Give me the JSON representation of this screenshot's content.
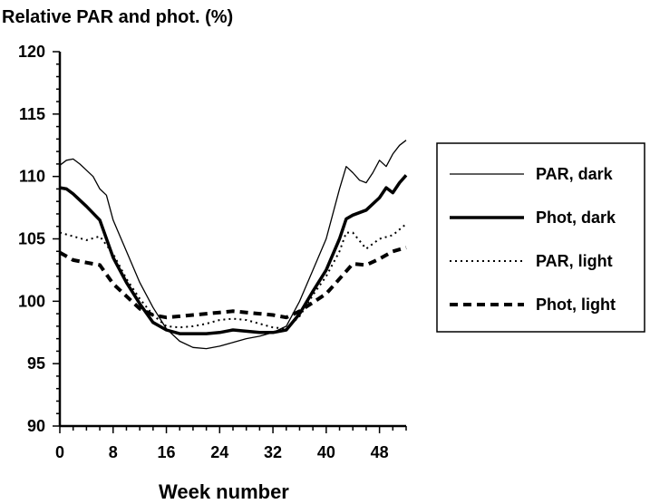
{
  "chart_data": {
    "type": "line",
    "title": "Relative PAR and phot. (%)",
    "xlabel": "Week number",
    "ylabel": "",
    "xlim": [
      0,
      52
    ],
    "ylim": [
      90,
      120
    ],
    "x_ticks": [
      0,
      8,
      16,
      24,
      32,
      40,
      48
    ],
    "y_ticks": [
      90,
      95,
      100,
      105,
      110,
      115,
      120
    ],
    "grid": false,
    "legend_position": "right",
    "series": [
      {
        "name": "PAR, dark",
        "style": "thin-solid",
        "x": [
          0,
          1,
          2,
          3,
          4,
          5,
          6,
          7,
          8,
          10,
          12,
          14,
          16,
          18,
          20,
          22,
          24,
          26,
          28,
          30,
          32,
          34,
          36,
          38,
          40,
          42,
          43,
          44,
          45,
          46,
          47,
          48,
          49,
          50,
          51,
          52
        ],
        "values": [
          110.9,
          111.3,
          111.4,
          111.0,
          110.5,
          110.0,
          109.0,
          108.5,
          106.5,
          104.0,
          101.5,
          99.5,
          97.8,
          96.8,
          96.3,
          96.2,
          96.4,
          96.7,
          97.0,
          97.2,
          97.5,
          98.0,
          100.0,
          102.5,
          105.0,
          109.0,
          110.8,
          110.3,
          109.7,
          109.5,
          110.3,
          111.3,
          110.8,
          111.8,
          112.5,
          112.9
        ]
      },
      {
        "name": "Phot, dark",
        "style": "thick-solid",
        "x": [
          0,
          1,
          2,
          4,
          6,
          8,
          10,
          12,
          14,
          16,
          18,
          20,
          22,
          24,
          26,
          28,
          30,
          32,
          34,
          36,
          38,
          40,
          42,
          43,
          44,
          46,
          48,
          49,
          50,
          51,
          52
        ],
        "values": [
          109.1,
          109.0,
          108.6,
          107.6,
          106.5,
          103.5,
          101.5,
          99.8,
          98.3,
          97.7,
          97.4,
          97.4,
          97.4,
          97.5,
          97.7,
          97.6,
          97.5,
          97.5,
          97.7,
          99.0,
          100.8,
          102.5,
          105.0,
          106.6,
          106.9,
          107.3,
          108.3,
          109.1,
          108.7,
          109.5,
          110.1
        ]
      },
      {
        "name": "PAR, light",
        "style": "dotted",
        "x": [
          0,
          2,
          4,
          6,
          8,
          10,
          12,
          14,
          16,
          18,
          20,
          22,
          24,
          26,
          28,
          30,
          32,
          34,
          36,
          38,
          40,
          42,
          43,
          44,
          46,
          48,
          50,
          52
        ],
        "values": [
          105.5,
          105.2,
          104.9,
          105.2,
          103.8,
          101.8,
          100.2,
          98.9,
          98.0,
          97.9,
          98.0,
          98.2,
          98.5,
          98.6,
          98.5,
          98.2,
          97.9,
          97.8,
          98.8,
          100.5,
          102.0,
          104.0,
          105.5,
          105.5,
          104.2,
          105.0,
          105.3,
          106.2
        ]
      },
      {
        "name": "Phot, light",
        "style": "dashed",
        "x": [
          0,
          2,
          4,
          6,
          8,
          10,
          12,
          14,
          16,
          18,
          20,
          22,
          24,
          26,
          28,
          30,
          32,
          34,
          36,
          38,
          40,
          42,
          44,
          46,
          48,
          50,
          52
        ],
        "values": [
          103.9,
          103.3,
          103.1,
          102.9,
          101.4,
          100.4,
          99.4,
          98.9,
          98.7,
          98.8,
          98.9,
          99.0,
          99.1,
          99.2,
          99.1,
          99.0,
          98.9,
          98.7,
          99.2,
          99.9,
          100.6,
          101.8,
          103.0,
          102.9,
          103.4,
          104.0,
          104.3
        ]
      }
    ]
  }
}
